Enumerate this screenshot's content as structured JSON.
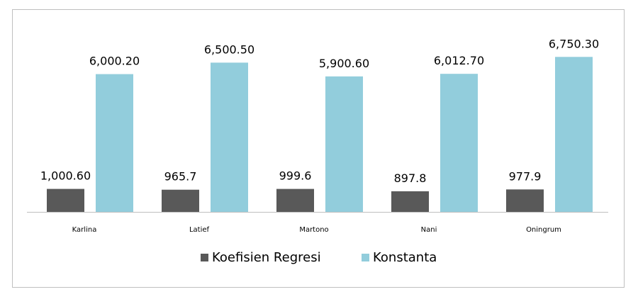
{
  "chart_data": {
    "type": "bar",
    "categories": [
      "Karlina",
      "Latief",
      "Martono",
      "Nani",
      "Oningrum"
    ],
    "series": [
      {
        "name": "Koefisien Regresi",
        "values": [
          1000.6,
          965.7,
          999.6,
          897.8,
          977.9
        ],
        "labels": [
          "1,000.60",
          "965.7",
          "999.6",
          "897.8",
          "977.9"
        ],
        "color": "#595959"
      },
      {
        "name": "Konstanta",
        "values": [
          6000.2,
          6500.5,
          5900.6,
          6012.7,
          6750.3
        ],
        "labels": [
          "6,000.20",
          "6,500.50",
          "5,900.60",
          "6,012.70",
          "6,750.30"
        ],
        "color": "#92cddc"
      }
    ],
    "ylim": [
      0,
      7000
    ],
    "legend": "bottom",
    "grid": false,
    "title": "",
    "xlabel": "",
    "ylabel": ""
  }
}
